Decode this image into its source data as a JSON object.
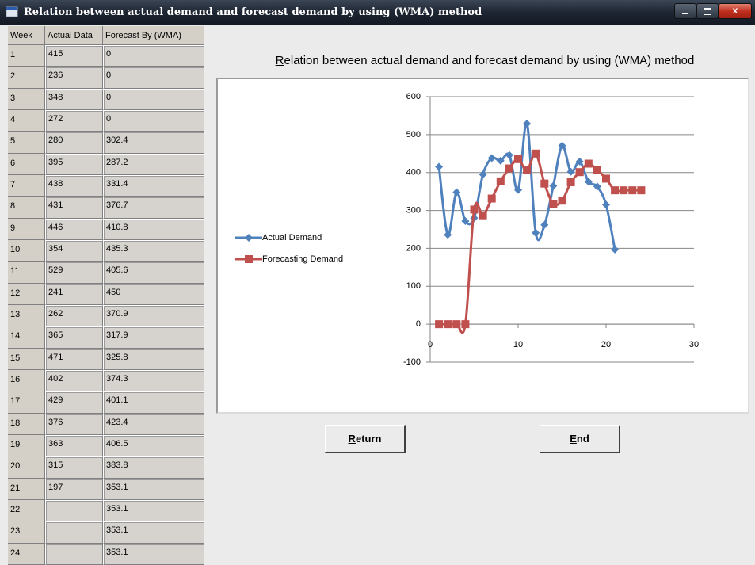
{
  "window": {
    "title": "Relation between actual demand and forecast demand by using (WMA) method"
  },
  "table": {
    "columns": [
      "Week",
      "Actual Data",
      "Forecast By (WMA)"
    ],
    "rows": [
      [
        1,
        415,
        0
      ],
      [
        2,
        236,
        0
      ],
      [
        3,
        348,
        0
      ],
      [
        4,
        272,
        0
      ],
      [
        5,
        280,
        302.4
      ],
      [
        6,
        395,
        287.2
      ],
      [
        7,
        438,
        331.4
      ],
      [
        8,
        431,
        376.7
      ],
      [
        9,
        446,
        410.8
      ],
      [
        10,
        354,
        435.3
      ],
      [
        11,
        529,
        405.6
      ],
      [
        12,
        241,
        450
      ],
      [
        13,
        262,
        370.9
      ],
      [
        14,
        365,
        317.9
      ],
      [
        15,
        471,
        325.8
      ],
      [
        16,
        402,
        374.3
      ],
      [
        17,
        429,
        401.1
      ],
      [
        18,
        376,
        423.4
      ],
      [
        19,
        363,
        406.5
      ],
      [
        20,
        315,
        383.8
      ],
      [
        21,
        197,
        353.1
      ],
      [
        22,
        null,
        353.1
      ],
      [
        23,
        null,
        353.1
      ],
      [
        24,
        null,
        353.1
      ]
    ]
  },
  "chart_data": {
    "type": "line",
    "title": "Relation between actual demand and forecast demand by using (WMA) method",
    "x": [
      1,
      2,
      3,
      4,
      5,
      6,
      7,
      8,
      9,
      10,
      11,
      12,
      13,
      14,
      15,
      16,
      17,
      18,
      19,
      20,
      21,
      22,
      23,
      24
    ],
    "series": [
      {
        "name": "Actual Demand",
        "color": "#4f81bd",
        "marker": "diamond",
        "values": [
          415,
          236,
          348,
          272,
          280,
          395,
          438,
          431,
          446,
          354,
          529,
          241,
          262,
          365,
          471,
          402,
          429,
          376,
          363,
          315,
          197,
          null,
          null,
          null
        ]
      },
      {
        "name": "Forecasting Demand",
        "color": "#c0504d",
        "marker": "square",
        "values": [
          0,
          0,
          0,
          0,
          302.4,
          287.2,
          331.4,
          376.7,
          410.8,
          435.3,
          405.6,
          450,
          370.9,
          317.9,
          325.8,
          374.3,
          401.1,
          423.4,
          406.5,
          383.8,
          353.1,
          353.1,
          353.1,
          353.1
        ]
      }
    ],
    "xlim": [
      0,
      30
    ],
    "xticks": [
      0,
      10,
      20,
      30
    ],
    "ylim": [
      -100,
      600
    ],
    "yticks": [
      -100,
      0,
      100,
      200,
      300,
      400,
      500,
      600
    ],
    "grid": true,
    "legend": "left"
  },
  "buttons": [
    "Return",
    "End"
  ]
}
